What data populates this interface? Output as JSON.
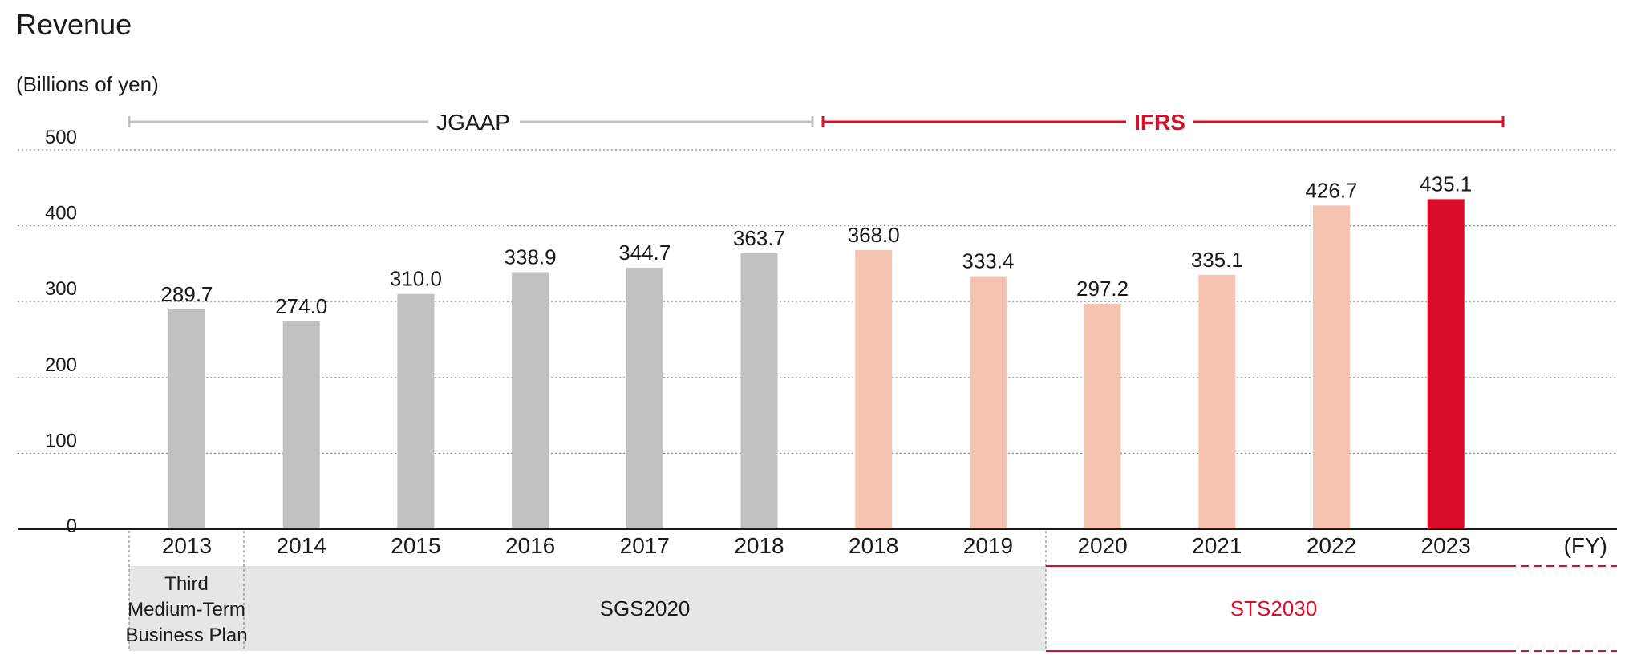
{
  "chart_data": {
    "type": "bar",
    "title": "Revenue",
    "unit_label": "(Billions of yen)",
    "x_axis_unit": "(FY)",
    "ylim": [
      0,
      500
    ],
    "yticks": [
      0,
      100,
      200,
      300,
      400,
      500
    ],
    "grid": true,
    "categories": [
      "2013",
      "2014",
      "2015",
      "2016",
      "2017",
      "2018",
      "2018",
      "2019",
      "2020",
      "2021",
      "2022",
      "2023"
    ],
    "values": [
      289.7,
      274.0,
      310.0,
      338.9,
      344.7,
      363.7,
      368.0,
      333.4,
      297.2,
      335.1,
      426.7,
      435.1
    ],
    "value_labels": [
      "289.7",
      "274.0",
      "310.0",
      "338.9",
      "344.7",
      "363.7",
      "368.0",
      "333.4",
      "297.2",
      "335.1",
      "426.7",
      "435.1"
    ],
    "standards": [
      {
        "label": "JGAAP",
        "categories": [
          "2013",
          "2014",
          "2015",
          "2016",
          "2017",
          "2018"
        ],
        "color": "#bfc0c0"
      },
      {
        "label": "IFRS",
        "categories": [
          "2018",
          "2019",
          "2020",
          "2021",
          "2022",
          "2023"
        ],
        "color": "#d7102a"
      }
    ],
    "bar_colors": {
      "jgaap": "#c0c1c0",
      "ifrs": "#f4c4b1",
      "latest": "#d80c28"
    },
    "plans": [
      {
        "label": "Third Medium-Term Business Plan",
        "lines": [
          "Third",
          "Medium-Term",
          "Business Plan"
        ],
        "span": [
          "2013",
          "2013"
        ],
        "style": "gray"
      },
      {
        "label": "SGS2020",
        "span": [
          "2014",
          "2019"
        ],
        "style": "gray"
      },
      {
        "label": "STS2030",
        "span": [
          "2020",
          "2023"
        ],
        "style": "red-outline"
      }
    ]
  }
}
